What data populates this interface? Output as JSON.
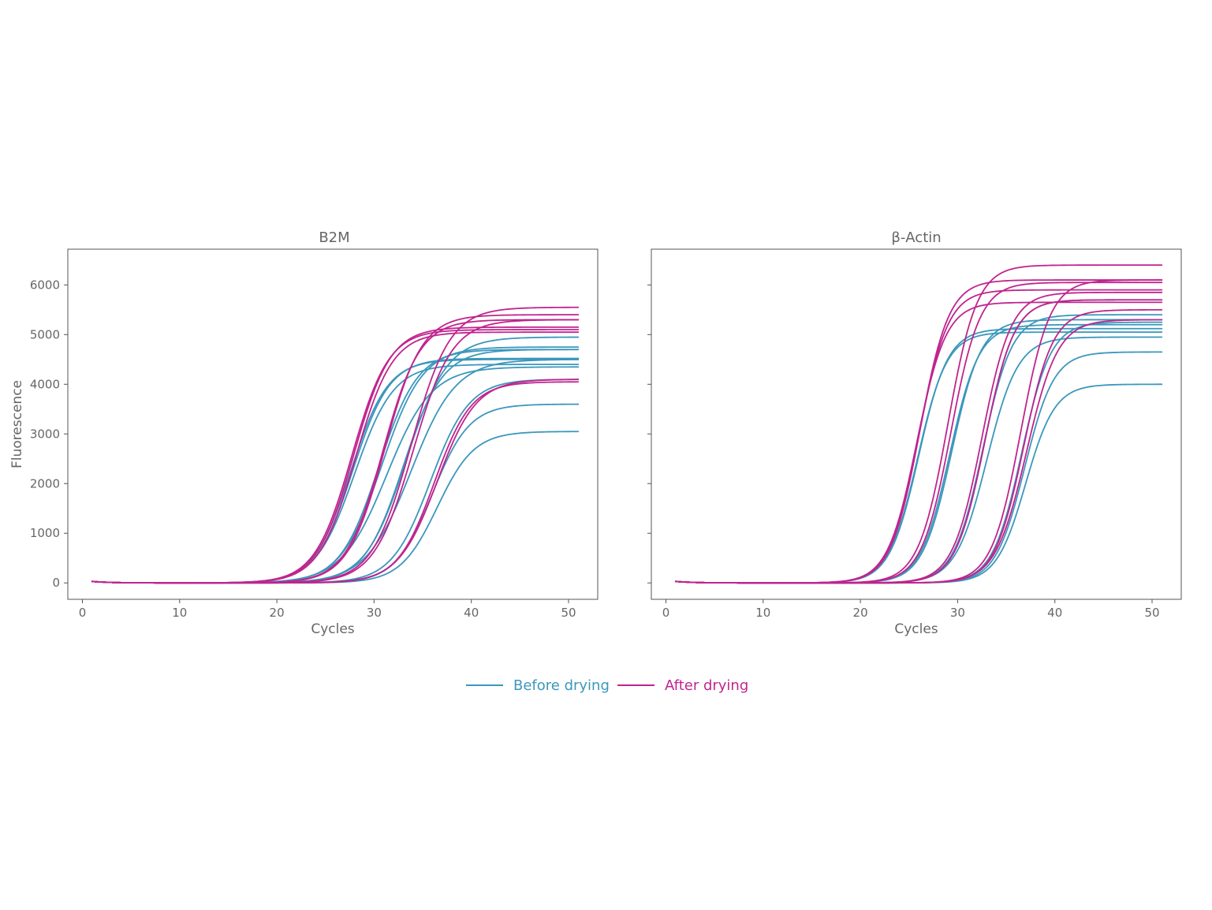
{
  "chart_data": [
    {
      "type": "line",
      "title": "B2M",
      "xlabel": "Cycles",
      "ylabel": "Fluorescence",
      "xlim": [
        -1.5,
        53
      ],
      "ylim": [
        -330,
        6720
      ],
      "xticks": [
        0,
        10,
        20,
        30,
        40,
        50
      ],
      "yticks": [
        0,
        1000,
        2000,
        3000,
        4000,
        5000,
        6000
      ],
      "x_range": [
        1,
        51
      ],
      "grid": false,
      "curve_model": "sigmoid: F(x) = Fmax / (1 + exp(-(x - midpoint) / slope)); F(1) ~ 30, flat baseline ~ 0",
      "series": [
        {
          "name": "Before drying",
          "color": "#3b97bc",
          "curves": [
            {
              "midpoint": 27.6,
              "slope": 1.9,
              "fmax": 4500
            },
            {
              "midpoint": 27.8,
              "slope": 1.9,
              "fmax": 4520
            },
            {
              "midpoint": 28.0,
              "slope": 2.0,
              "fmax": 4400
            },
            {
              "midpoint": 30.5,
              "slope": 2.0,
              "fmax": 4700
            },
            {
              "midpoint": 30.8,
              "slope": 2.1,
              "fmax": 4750
            },
            {
              "midpoint": 31.3,
              "slope": 2.3,
              "fmax": 4350
            },
            {
              "midpoint": 33.0,
              "slope": 2.0,
              "fmax": 4700
            },
            {
              "midpoint": 33.3,
              "slope": 2.1,
              "fmax": 4950
            },
            {
              "midpoint": 33.8,
              "slope": 2.3,
              "fmax": 4500
            },
            {
              "midpoint": 35.8,
              "slope": 2.0,
              "fmax": 4100
            },
            {
              "midpoint": 36.0,
              "slope": 1.9,
              "fmax": 3600
            },
            {
              "midpoint": 36.5,
              "slope": 1.9,
              "fmax": 3050
            }
          ]
        },
        {
          "name": "After drying",
          "color": "#c0248e",
          "curves": [
            {
              "midpoint": 27.7,
              "slope": 1.9,
              "fmax": 5100
            },
            {
              "midpoint": 27.9,
              "slope": 1.9,
              "fmax": 5150
            },
            {
              "midpoint": 28.1,
              "slope": 1.9,
              "fmax": 5050
            },
            {
              "midpoint": 30.9,
              "slope": 1.9,
              "fmax": 5300
            },
            {
              "midpoint": 31.1,
              "slope": 1.9,
              "fmax": 5400
            },
            {
              "midpoint": 33.8,
              "slope": 2.0,
              "fmax": 5550
            },
            {
              "midpoint": 34.0,
              "slope": 2.0,
              "fmax": 5300
            },
            {
              "midpoint": 36.2,
              "slope": 1.9,
              "fmax": 4050
            },
            {
              "midpoint": 36.5,
              "slope": 2.0,
              "fmax": 4100
            }
          ]
        }
      ]
    },
    {
      "type": "line",
      "title": "β-Actin",
      "xlabel": "Cycles",
      "ylabel": "",
      "xlim": [
        -1.5,
        53
      ],
      "ylim": [
        -330,
        6720
      ],
      "xticks": [
        0,
        10,
        20,
        30,
        40,
        50
      ],
      "yticks": [
        0,
        1000,
        2000,
        3000,
        4000,
        5000,
        6000
      ],
      "x_range": [
        1,
        51
      ],
      "grid": false,
      "curve_model": "sigmoid: F(x) = Fmax / (1 + exp(-(x - midpoint) / slope)); F(1) ~ 30, flat baseline ~ 0",
      "series": [
        {
          "name": "Before drying",
          "color": "#3b97bc",
          "curves": [
            {
              "midpoint": 25.9,
              "slope": 1.5,
              "fmax": 5050
            },
            {
              "midpoint": 26.0,
              "slope": 1.5,
              "fmax": 5120
            },
            {
              "midpoint": 29.2,
              "slope": 1.5,
              "fmax": 5200
            },
            {
              "midpoint": 29.4,
              "slope": 1.5,
              "fmax": 5300
            },
            {
              "midpoint": 32.6,
              "slope": 1.5,
              "fmax": 5400
            },
            {
              "midpoint": 32.8,
              "slope": 1.5,
              "fmax": 5700
            },
            {
              "midpoint": 33.0,
              "slope": 1.6,
              "fmax": 4950
            },
            {
              "midpoint": 36.6,
              "slope": 1.5,
              "fmax": 5250
            },
            {
              "midpoint": 36.9,
              "slope": 1.5,
              "fmax": 4650
            },
            {
              "midpoint": 37.0,
              "slope": 1.5,
              "fmax": 4000
            }
          ]
        },
        {
          "name": "After drying",
          "color": "#c0248e",
          "curves": [
            {
              "midpoint": 25.8,
              "slope": 1.5,
              "fmax": 5650
            },
            {
              "midpoint": 26.0,
              "slope": 1.5,
              "fmax": 5900
            },
            {
              "midpoint": 26.1,
              "slope": 1.5,
              "fmax": 6100
            },
            {
              "midpoint": 29.0,
              "slope": 1.5,
              "fmax": 6400
            },
            {
              "midpoint": 29.3,
              "slope": 1.5,
              "fmax": 6050
            },
            {
              "midpoint": 32.5,
              "slope": 1.5,
              "fmax": 5850
            },
            {
              "midpoint": 32.8,
              "slope": 1.5,
              "fmax": 5700
            },
            {
              "midpoint": 36.5,
              "slope": 1.5,
              "fmax": 6100
            },
            {
              "midpoint": 36.8,
              "slope": 1.5,
              "fmax": 5500
            },
            {
              "midpoint": 37.1,
              "slope": 1.6,
              "fmax": 5300
            }
          ]
        }
      ]
    }
  ],
  "legend": {
    "placement": "bottom-center",
    "items": [
      {
        "label": "Before drying",
        "color": "#3b97bc"
      },
      {
        "label": "After drying",
        "color": "#c0248e"
      }
    ]
  }
}
